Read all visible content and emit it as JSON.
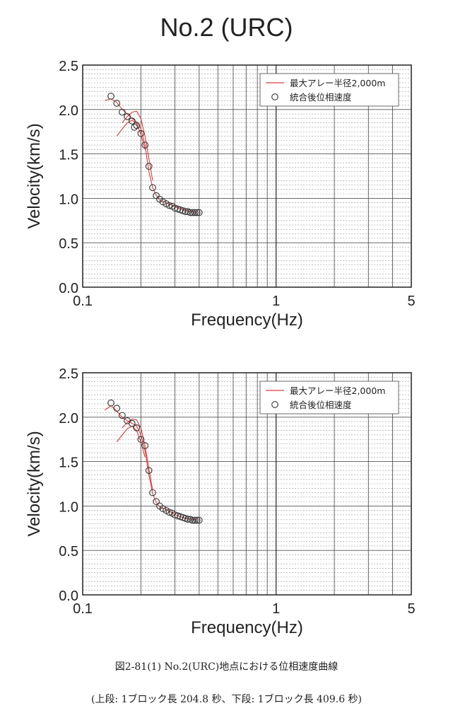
{
  "page": {
    "title": "No.2 (URC)",
    "caption": "図2-81(1) No.2(URC)地点における位相速度曲線",
    "subcaption": "(上段: 1ブロック長 204.8 秒、下段: 1ブロック長 409.6 秒)"
  },
  "colors": {
    "line": "#d94040",
    "marker": "#333333",
    "grid_major": "#555555",
    "grid_minor": "#9a9a9a"
  },
  "chart_data": [
    {
      "type": "line",
      "xlabel": "Frequency(Hz)",
      "ylabel": "Velocity(km/s)",
      "xscale": "log",
      "xlim": [
        0.1,
        5
      ],
      "ylim": [
        0.0,
        2.5
      ],
      "xticks": [
        "0.1",
        "1",
        "5"
      ],
      "yticks": [
        "0.0",
        "0.5",
        "1.0",
        "1.5",
        "2.0",
        "2.5"
      ],
      "grid": true,
      "legend_position": "top-right",
      "legend": [
        "最大アレー半径2,000m",
        "統合後位相速度"
      ],
      "series": [
        {
          "name": "最大アレー半径2,000m",
          "style": "line",
          "x": [
            0.13,
            0.14,
            0.15,
            0.16,
            0.17,
            0.18,
            0.19,
            0.2,
            0.21,
            0.22,
            0.23,
            0.24,
            0.25,
            0.27,
            0.29,
            0.31,
            0.33,
            0.35,
            0.37,
            0.39
          ],
          "y": [
            2.1,
            2.12,
            2.08,
            2.0,
            1.95,
            1.9,
            1.86,
            1.78,
            1.6,
            1.3,
            1.12,
            1.03,
            0.98,
            0.95,
            0.92,
            0.89,
            0.87,
            0.86,
            0.85,
            0.84
          ]
        },
        {
          "name": "最大アレー半径2,000m",
          "style": "line",
          "x": [
            0.16,
            0.17,
            0.18,
            0.19,
            0.2,
            0.21,
            0.22,
            0.23
          ],
          "y": [
            1.85,
            1.92,
            1.97,
            1.98,
            1.9,
            1.7,
            1.45,
            1.2
          ]
        },
        {
          "name": "最大アレー半径2,000m",
          "style": "line",
          "x": [
            0.15,
            0.16,
            0.17,
            0.18,
            0.19,
            0.2,
            0.21
          ],
          "y": [
            1.7,
            1.78,
            1.85,
            1.88,
            1.84,
            1.72,
            1.55
          ]
        },
        {
          "name": "統合後位相速度",
          "style": "marker",
          "x": [
            0.14,
            0.15,
            0.16,
            0.17,
            0.18,
            0.185,
            0.19,
            0.2,
            0.21,
            0.22,
            0.23,
            0.24,
            0.25,
            0.26,
            0.27,
            0.28,
            0.29,
            0.3,
            0.31,
            0.32,
            0.33,
            0.34,
            0.35,
            0.36,
            0.37,
            0.38,
            0.39,
            0.4
          ],
          "y": [
            2.15,
            2.07,
            1.97,
            1.92,
            1.87,
            1.8,
            1.82,
            1.73,
            1.6,
            1.36,
            1.12,
            1.03,
            0.99,
            0.96,
            0.94,
            0.92,
            0.91,
            0.89,
            0.88,
            0.87,
            0.86,
            0.85,
            0.85,
            0.84,
            0.84,
            0.84,
            0.84,
            0.84
          ]
        }
      ]
    },
    {
      "type": "line",
      "xlabel": "Frequency(Hz)",
      "ylabel": "Velocity(km/s)",
      "xscale": "log",
      "xlim": [
        0.1,
        5
      ],
      "ylim": [
        0.0,
        2.5
      ],
      "xticks": [
        "0.1",
        "1",
        "5"
      ],
      "yticks": [
        "0.0",
        "0.5",
        "1.0",
        "1.5",
        "2.0",
        "2.5"
      ],
      "grid": true,
      "legend_position": "top-right",
      "legend": [
        "最大アレー半径2,000m",
        "統合後位相速度"
      ],
      "series": [
        {
          "name": "最大アレー半径2,000m",
          "style": "line",
          "x": [
            0.13,
            0.14,
            0.15,
            0.16,
            0.17,
            0.18,
            0.19,
            0.2,
            0.21,
            0.22,
            0.23,
            0.24,
            0.25,
            0.27,
            0.29,
            0.31,
            0.33,
            0.35,
            0.37,
            0.39
          ],
          "y": [
            2.08,
            2.13,
            2.07,
            2.0,
            1.96,
            1.93,
            1.9,
            1.8,
            1.62,
            1.35,
            1.14,
            1.04,
            0.99,
            0.96,
            0.92,
            0.89,
            0.87,
            0.86,
            0.85,
            0.84
          ]
        },
        {
          "name": "最大アレー半径2,000m",
          "style": "line",
          "x": [
            0.16,
            0.17,
            0.18,
            0.19,
            0.2,
            0.21,
            0.22,
            0.23
          ],
          "y": [
            1.88,
            1.94,
            1.98,
            1.97,
            1.88,
            1.68,
            1.42,
            1.18
          ]
        },
        {
          "name": "最大アレー半径2,000m",
          "style": "line",
          "x": [
            0.15,
            0.16,
            0.17,
            0.18,
            0.19,
            0.2,
            0.21
          ],
          "y": [
            1.72,
            1.8,
            1.87,
            1.9,
            1.85,
            1.72,
            1.55
          ]
        },
        {
          "name": "統合後位相速度",
          "style": "marker",
          "x": [
            0.14,
            0.15,
            0.16,
            0.17,
            0.18,
            0.19,
            0.2,
            0.21,
            0.22,
            0.23,
            0.24,
            0.25,
            0.26,
            0.27,
            0.28,
            0.29,
            0.3,
            0.31,
            0.32,
            0.33,
            0.34,
            0.35,
            0.36,
            0.37,
            0.38,
            0.39,
            0.4
          ],
          "y": [
            2.16,
            2.1,
            2.02,
            1.96,
            1.93,
            1.88,
            1.75,
            1.68,
            1.4,
            1.15,
            1.05,
            1.0,
            0.97,
            0.95,
            0.93,
            0.92,
            0.9,
            0.89,
            0.88,
            0.87,
            0.86,
            0.85,
            0.85,
            0.84,
            0.84,
            0.84,
            0.84
          ]
        }
      ]
    }
  ]
}
